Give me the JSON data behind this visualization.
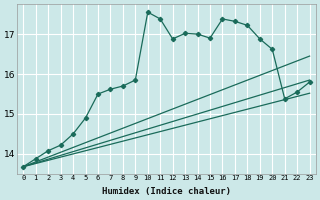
{
  "xlabel": "Humidex (Indice chaleur)",
  "bg_color": "#cce8e8",
  "grid_color": "#ffffff",
  "line_color": "#1a6b5a",
  "xlim": [
    -0.5,
    23.5
  ],
  "ylim": [
    13.5,
    17.75
  ],
  "yticks": [
    14,
    15,
    16,
    17
  ],
  "xticks": [
    0,
    1,
    2,
    3,
    4,
    5,
    6,
    7,
    8,
    9,
    10,
    11,
    12,
    13,
    14,
    15,
    16,
    17,
    18,
    19,
    20,
    21,
    22,
    23
  ],
  "line1_x": [
    0,
    1,
    2,
    3,
    4,
    5,
    6,
    7,
    8,
    9,
    10,
    11,
    12,
    13,
    14,
    15,
    16,
    17,
    18,
    19,
    20,
    21,
    22,
    23
  ],
  "line1_y": [
    13.68,
    13.88,
    14.08,
    14.22,
    14.5,
    14.9,
    15.5,
    15.62,
    15.7,
    15.85,
    17.55,
    17.38,
    16.88,
    17.02,
    17.0,
    16.9,
    17.38,
    17.32,
    17.22,
    16.88,
    16.62,
    15.38,
    15.55,
    15.8
  ],
  "line2_x": [
    0,
    23
  ],
  "line2_y": [
    13.68,
    16.45
  ],
  "line3_x": [
    0,
    23
  ],
  "line3_y": [
    13.68,
    15.85
  ],
  "line4_x": [
    0,
    23
  ],
  "line4_y": [
    13.68,
    15.52
  ]
}
